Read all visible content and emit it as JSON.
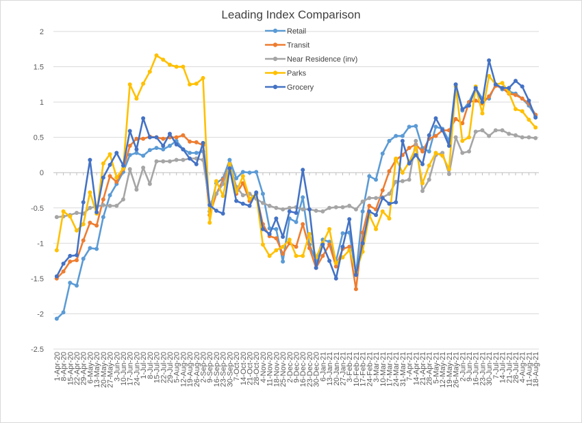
{
  "chart_data": {
    "type": "line",
    "title": "Leading Index Comparison",
    "xlabel": "",
    "ylabel": "",
    "ylim": [
      -2.5,
      2
    ],
    "yticks": [
      "2",
      "1.5",
      "1",
      "0.5",
      "0",
      "-0.5",
      "-1",
      "-1.5",
      "-2",
      "-2.5"
    ],
    "ytick_values": [
      2,
      1.5,
      1,
      0.5,
      0,
      -0.5,
      -1,
      -1.5,
      -2,
      -2.5
    ],
    "grid": true,
    "legend_position": "top-center",
    "categories": [
      "1-Apr-20",
      "8-Apr-20",
      "15-Apr-20",
      "22-Apr-20",
      "29-Apr-20",
      "6-May-20",
      "13-May-20",
      "20-May-20",
      "27-May-20",
      "3-Jun-20",
      "10-Jun-20",
      "17-Jun-20",
      "24-Jun-20",
      "1-Jul-20",
      "8-Jul-20",
      "15-Jul-20",
      "22-Jul-20",
      "29-Jul-20",
      "5-Aug-20",
      "12-Aug-20",
      "19-Aug-20",
      "26-Aug-20",
      "2-Sep-20",
      "9-Sep-20",
      "16-Sep-20",
      "23-Sep-20",
      "30-Sep-20",
      "7-Oct-20",
      "14-Oct-20",
      "21-Oct-20",
      "28-Oct-20",
      "4-Nov-20",
      "11-Nov-20",
      "18-Nov-20",
      "25-Nov-20",
      "2-Dec-20",
      "9-Dec-20",
      "16-Dec-20",
      "23-Dec-20",
      "30-Dec-20",
      "6-Jan-21",
      "13-Jan-21",
      "20-Jan-21",
      "27-Jan-21",
      "3-Feb-21",
      "10-Feb-21",
      "17-Feb-21",
      "24-Feb-21",
      "3-Mar-21",
      "10-Mar-21",
      "17-Mar-21",
      "24-Mar-21",
      "31-Mar-21",
      "7-Apr-21",
      "14-Apr-21",
      "21-Apr-21",
      "28-Apr-21",
      "5-May-21",
      "12-May-21",
      "19-May-21",
      "26-May-21",
      "2-Jun-21",
      "9-Jun-21",
      "16-Jun-21",
      "23-Jun-21",
      "30-Jun-21",
      "7-Jul-21",
      "14-Jul-21",
      "21-Jul-21",
      "28-Jul-21",
      "4-Aug-21",
      "11-Aug-21",
      "18-Aug-21"
    ],
    "xtick_labels": [
      "1-Apr-20",
      "8-Apr-20",
      "15-Apr-20",
      "22-Apr-20",
      "29-Apr-20",
      "6-May-20",
      "13-May-20",
      "20-May-20",
      "27-May-20",
      "3-Jun-20",
      "10-Jun-20",
      "17-Jun-20",
      "24-Jun-20",
      "1-Jul-20",
      "8-Jul-20",
      "15-Jul-20",
      "22-Jul-20",
      "29-Jul-20",
      "5-Aug-20",
      "12-Aug-20",
      "19-Aug-20",
      "26-Aug-20",
      "2-Sep-20",
      "9-Sep-20",
      "16-Sep-20",
      "23-Sep-20",
      "30-Sep-20",
      "7-Oct-20",
      "14-Oct-20",
      "21-Oct-20",
      "28-Oct-20",
      "4-Nov-20",
      "11-Nov-20",
      "18-Nov-20",
      "25-Nov-20",
      "2-Dec-20",
      "9-Dec-20",
      "16-Dec-20",
      "23-Dec-20",
      "30-Dec-20",
      "6-Jan-21",
      "13-Jan-21",
      "20-Jan-21",
      "27-Jan-21",
      "3-Feb-21",
      "10-Feb-21",
      "17-Feb-21",
      "24-Feb-21",
      "3-Mar-21",
      "10-Mar-21",
      "17-Mar-21",
      "24-Mar-21",
      "31-Mar-21",
      "7-Apr-21",
      "14-Apr-21",
      "21-Apr-21",
      "28-Apr-21",
      "5-May-21",
      "12-May-21",
      "19-May-21",
      "26-May-21",
      "2-Jun-21",
      "9-Jun-21",
      "16-Jun-21",
      "23-Jun-21",
      "30-Jun-21",
      "7-Jul-21",
      "14-Jul-21",
      "21-Jul-21",
      "28-Jul-21",
      "4-Aug-21",
      "11-Aug-21",
      "18-Aug-21"
    ],
    "series": [
      {
        "name": "Retail",
        "color": "#5B9BD5",
        "values": [
          -2.07,
          -1.98,
          -1.56,
          -1.6,
          -1.22,
          -1.07,
          -1.08,
          -0.63,
          -0.32,
          -0.16,
          0.01,
          0.25,
          0.28,
          0.24,
          0.32,
          0.35,
          0.33,
          0.38,
          0.45,
          0.33,
          0.28,
          0.28,
          0.3,
          -0.55,
          -0.15,
          -0.08,
          0.18,
          -0.08,
          0.01,
          0.0,
          0.01,
          -0.3,
          -0.79,
          -0.8,
          -1.26,
          -0.65,
          -0.7,
          -0.35,
          -1.02,
          -1.25,
          -0.95,
          -0.98,
          -1.25,
          -0.86,
          -0.85,
          -1.44,
          -0.55,
          -0.05,
          -0.1,
          0.27,
          0.45,
          0.52,
          0.52,
          0.65,
          0.66,
          0.35,
          0.3,
          0.65,
          0.62,
          0.45,
          1.25,
          0.88,
          1.0,
          1.2,
          1.05,
          1.05,
          1.25,
          1.18,
          1.15,
          1.12,
          1.05,
          0.95,
          0.8
        ]
      },
      {
        "name": "Transit",
        "color": "#ED7D31",
        "values": [
          -1.5,
          -1.4,
          -1.26,
          -1.24,
          -0.96,
          -0.71,
          -0.75,
          -0.38,
          -0.05,
          -0.13,
          0.05,
          0.38,
          0.48,
          0.48,
          0.51,
          0.5,
          0.48,
          0.5,
          0.5,
          0.53,
          0.44,
          0.43,
          0.39,
          -0.6,
          -0.3,
          -0.1,
          0.1,
          -0.3,
          -0.15,
          -0.4,
          -0.3,
          -0.73,
          -0.9,
          -0.93,
          -1.15,
          -1.0,
          -1.05,
          -0.73,
          -1.07,
          -1.35,
          -1.18,
          -1.02,
          -1.33,
          -1.08,
          -1.05,
          -1.65,
          -0.85,
          -0.47,
          -0.52,
          -0.25,
          0.02,
          0.18,
          0.25,
          0.35,
          0.4,
          0.3,
          0.48,
          0.52,
          0.6,
          0.6,
          0.76,
          0.7,
          1.0,
          1.02,
          0.98,
          1.08,
          1.23,
          1.2,
          1.12,
          1.1,
          1.05,
          0.98,
          0.82
        ]
      },
      {
        "name": "Near Residence (inv)",
        "color": "#A5A5A5",
        "values": [
          -0.63,
          -0.62,
          -0.6,
          -0.57,
          -0.58,
          -0.5,
          -0.48,
          -0.46,
          -0.47,
          -0.47,
          -0.38,
          0.05,
          -0.24,
          0.07,
          -0.16,
          0.16,
          0.16,
          0.16,
          0.18,
          0.18,
          0.2,
          0.2,
          0.18,
          -0.45,
          -0.3,
          -0.16,
          0.13,
          -0.2,
          -0.32,
          -0.3,
          -0.37,
          -0.43,
          -0.47,
          -0.5,
          -0.52,
          -0.5,
          -0.49,
          -0.52,
          -0.52,
          -0.54,
          -0.55,
          -0.5,
          -0.49,
          -0.49,
          -0.47,
          -0.52,
          -0.41,
          -0.36,
          -0.36,
          -0.35,
          -0.3,
          -0.13,
          -0.12,
          -0.1,
          0.45,
          -0.26,
          -0.1,
          0.25,
          0.28,
          -0.02,
          0.5,
          0.28,
          0.3,
          0.58,
          0.6,
          0.52,
          0.6,
          0.6,
          0.55,
          0.53,
          0.5,
          0.5,
          0.49
        ]
      },
      {
        "name": "Parks",
        "color": "#FFC000",
        "values": [
          -1.1,
          -0.55,
          -0.62,
          -0.82,
          -0.73,
          -0.28,
          -0.58,
          0.13,
          0.26,
          -0.07,
          0.06,
          1.25,
          1.05,
          1.26,
          1.43,
          1.66,
          1.6,
          1.53,
          1.5,
          1.5,
          1.25,
          1.26,
          1.34,
          -0.71,
          -0.12,
          -0.33,
          0.12,
          -0.27,
          -0.05,
          -0.37,
          -0.3,
          -1.02,
          -1.18,
          -1.1,
          -1.05,
          -0.95,
          -1.18,
          -1.18,
          -0.87,
          -1.2,
          -1.0,
          -0.8,
          -1.28,
          -1.2,
          -1.1,
          -1.4,
          -1.12,
          -0.6,
          -0.8,
          -0.55,
          -0.65,
          0.2,
          0.0,
          0.15,
          0.35,
          -0.15,
          0.1,
          0.28,
          0.24,
          0.05,
          1.22,
          0.45,
          0.5,
          1.22,
          0.84,
          1.37,
          1.25,
          1.27,
          1.13,
          0.9,
          0.87,
          0.75,
          0.64
        ]
      },
      {
        "name": "Grocery",
        "color": "#4472C4",
        "values": [
          -1.47,
          -1.29,
          -1.18,
          -1.17,
          -0.42,
          0.18,
          -0.56,
          -0.07,
          0.11,
          0.28,
          0.1,
          0.59,
          0.33,
          0.77,
          0.5,
          0.5,
          0.38,
          0.55,
          0.4,
          0.33,
          0.2,
          0.12,
          0.42,
          -0.46,
          -0.54,
          -0.58,
          0.06,
          -0.4,
          -0.44,
          -0.47,
          -0.28,
          -0.8,
          -0.87,
          -0.65,
          -0.91,
          -0.55,
          -0.57,
          0.04,
          -0.52,
          -1.35,
          -1.02,
          -1.25,
          -1.5,
          -1.05,
          -0.66,
          -1.45,
          -1.0,
          -0.55,
          -0.6,
          -0.36,
          -0.44,
          -0.42,
          0.45,
          0.13,
          0.25,
          0.12,
          0.53,
          0.77,
          0.6,
          0.38,
          1.25,
          0.9,
          0.95,
          1.2,
          1.0,
          1.59,
          1.25,
          1.2,
          1.2,
          1.3,
          1.22,
          1.02,
          0.78
        ]
      }
    ]
  }
}
